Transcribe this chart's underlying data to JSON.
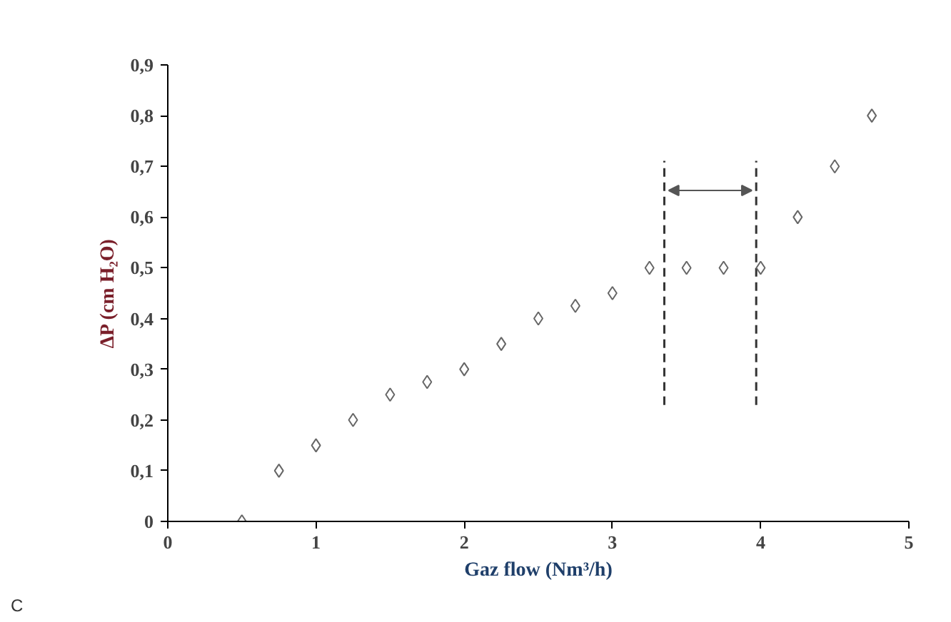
{
  "chart_data": {
    "type": "scatter",
    "xlabel": "Gaz flow (Nm³/h)",
    "ylabel": "ΔP (cm H₂O)",
    "x": [
      0.5,
      0.75,
      1,
      1.25,
      1.5,
      1.75,
      2,
      2.25,
      2.5,
      2.75,
      3,
      3.25,
      3.5,
      3.75,
      4,
      4.25,
      4.5,
      4.75
    ],
    "series": [
      {
        "color": "#666666",
        "values": [
          0,
          0.1,
          0.15,
          0.2,
          0.25,
          0.275,
          0.3,
          0.35,
          0.4,
          0.425,
          0.45,
          0.5,
          0.5,
          0.5,
          0.5,
          0.6,
          0.7,
          0.8
        ]
      }
    ],
    "xlim": [
      0,
      5
    ],
    "xticks": [
      0,
      1,
      2,
      3,
      4,
      5
    ],
    "ylim": [
      0,
      0.9
    ],
    "yticks": [
      {
        "value": 0,
        "label": "0"
      },
      {
        "value": 0.1,
        "label": "0,1"
      },
      {
        "value": 0.2,
        "label": "0,2"
      },
      {
        "value": 0.3,
        "label": "0,3"
      },
      {
        "value": 0.4,
        "label": "0,4"
      },
      {
        "value": 0.5,
        "label": "0,5"
      },
      {
        "value": 0.6,
        "label": "0,6"
      },
      {
        "value": 0.7,
        "label": "0,7"
      },
      {
        "value": 0.8,
        "label": "0,8"
      },
      {
        "value": 0.9,
        "label": "0,9"
      }
    ],
    "ref_lines": [
      {
        "axis": "x",
        "value": 3.35,
        "color": "#333333",
        "line_style": "dashed"
      },
      {
        "axis": "x",
        "value": 3.97,
        "color": "#333333",
        "line_style": "dashed"
      }
    ],
    "annotations": [
      "C"
    ],
    "marker": "diamond",
    "grid": false
  }
}
